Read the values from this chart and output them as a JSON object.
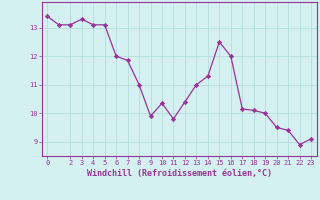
{
  "x": [
    0,
    1,
    2,
    3,
    4,
    5,
    6,
    7,
    8,
    9,
    10,
    11,
    12,
    13,
    14,
    15,
    16,
    17,
    18,
    19,
    20,
    21,
    22,
    23
  ],
  "y": [
    13.4,
    13.1,
    13.1,
    13.3,
    13.1,
    13.1,
    12.0,
    11.85,
    11.0,
    9.9,
    10.35,
    9.8,
    10.4,
    11.0,
    11.3,
    12.5,
    12.0,
    10.15,
    10.1,
    10.0,
    9.5,
    9.4,
    8.9,
    9.1
  ],
  "line_color": "#993399",
  "marker": "D",
  "marker_size": 2.2,
  "bg_color": "#d4f0f0",
  "grid_color": "#b0d8d8",
  "xlabel": "Windchill (Refroidissement éolien,°C)",
  "xlim": [
    -0.5,
    23.5
  ],
  "ylim": [
    8.5,
    13.9
  ],
  "yticks": [
    9,
    10,
    11,
    12,
    13
  ],
  "xticks": [
    0,
    2,
    3,
    4,
    5,
    6,
    7,
    8,
    9,
    10,
    11,
    12,
    13,
    14,
    15,
    16,
    17,
    18,
    19,
    20,
    21,
    22,
    23
  ],
  "tick_label_color": "#993399",
  "xlabel_color": "#993399",
  "axis_color": "#993399",
  "tick_fontsize": 5.0,
  "xlabel_fontsize": 6.0,
  "linewidth": 0.9
}
